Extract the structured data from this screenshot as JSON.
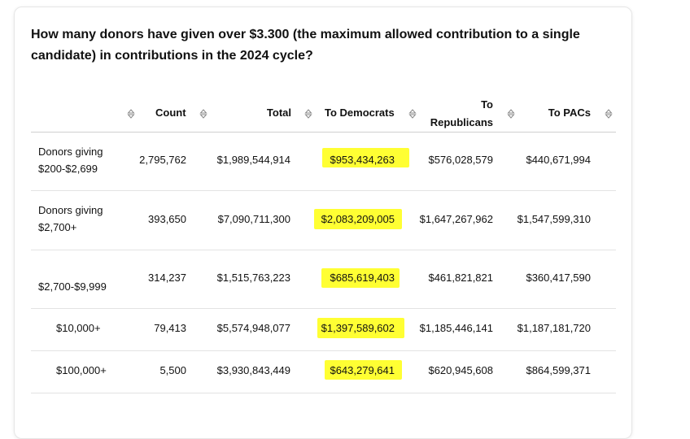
{
  "question": "How many donors have given over $3.300 (the maximum allowed contribution to a single candidate) in contributions in the 2024 cycle?",
  "columns": {
    "count": "Count",
    "total": "Total",
    "democrats": "To Democrats",
    "republicans_line1": "To",
    "republicans_line2": "Republicans",
    "pacs": "To PACs"
  },
  "rows": [
    {
      "label_line1": "Donors giving",
      "label_line2": "$200-$2,699",
      "count": "2,795,762",
      "total": "$1,989,544,914",
      "democrats": "$953,434,263",
      "republicans": "$576,028,579",
      "pacs": "$440,671,994"
    },
    {
      "label_line1": "Donors giving",
      "label_line2": "$2,700+",
      "count": "393,650",
      "total": "$7,090,711,300",
      "democrats": "$2,083,209,005",
      "republicans": "$1,647,267,962",
      "pacs": "$1,547,599,310"
    },
    {
      "label_line1": "",
      "label_line2": "$2,700-$9,999",
      "count": "314,237",
      "total": "$1,515,763,223",
      "democrats": "$685,619,403",
      "republicans": "$461,821,821",
      "pacs": "$360,417,590"
    },
    {
      "label_line1": "",
      "label_line2": "$10,000+",
      "count": "79,413",
      "total": "$5,574,948,077",
      "democrats": "$1,397,589,602",
      "republicans": "$1,185,446,141",
      "pacs": "$1,187,181,720"
    },
    {
      "label_line1": "",
      "label_line2": "$100,000+",
      "count": "5,500",
      "total": "$3,930,843,449",
      "democrats": "$643,279,641",
      "republicans": "$620,945,608",
      "pacs": "$864,599,371"
    }
  ],
  "highlight_color": "#ffff33"
}
